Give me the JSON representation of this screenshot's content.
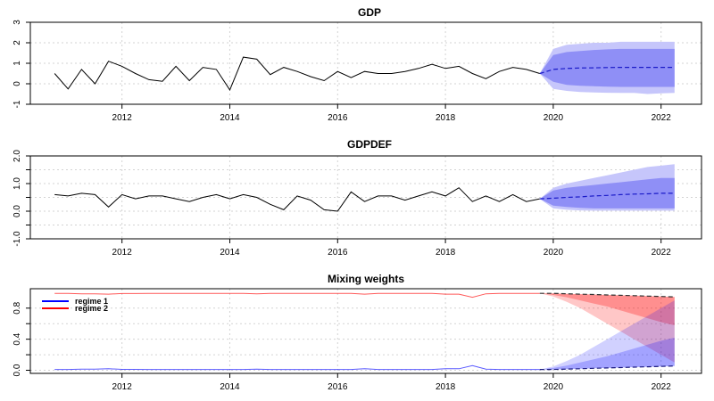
{
  "figure": {
    "colors": {
      "obs_line": "#000000",
      "band_outer": "#c6c6fb",
      "band_inner": "#8f8ff6",
      "forecast_line": "#1a1ac8",
      "regime1": "#0000ff",
      "regime2": "#ff0000",
      "grid": "#d3d3d3"
    }
  },
  "chart_data": [
    {
      "type": "line",
      "title": "GDP",
      "xlabel": "",
      "ylabel": "",
      "xlim": [
        2010.3,
        2022.75
      ],
      "ylim": [
        -1,
        3
      ],
      "yticks": [
        -1,
        0,
        1,
        2,
        3
      ],
      "ytick_labels": [
        "-1",
        "0",
        "1",
        "2",
        "3"
      ],
      "xticks": [
        2012,
        2014,
        2016,
        2018,
        2020,
        2022
      ],
      "xtick_labels": [
        "2012",
        "2014",
        "2016",
        "2018",
        "2020",
        "2022"
      ],
      "grid": true,
      "observed": {
        "x": [
          2010.75,
          2011.0,
          2011.25,
          2011.5,
          2011.75,
          2012.0,
          2012.25,
          2012.5,
          2012.75,
          2013.0,
          2013.25,
          2013.5,
          2013.75,
          2014.0,
          2014.25,
          2014.5,
          2014.75,
          2015.0,
          2015.25,
          2015.5,
          2015.75,
          2016.0,
          2016.25,
          2016.5,
          2016.75,
          2017.0,
          2017.25,
          2017.5,
          2017.75,
          2018.0,
          2018.25,
          2018.5,
          2018.75,
          2019.0,
          2019.25,
          2019.5,
          2019.75
        ],
        "y": [
          0.5,
          -0.25,
          0.7,
          0.0,
          1.1,
          0.85,
          0.5,
          0.2,
          0.12,
          0.85,
          0.15,
          0.8,
          0.7,
          -0.3,
          1.3,
          1.2,
          0.45,
          0.8,
          0.6,
          0.35,
          0.15,
          0.6,
          0.3,
          0.6,
          0.5,
          0.5,
          0.6,
          0.75,
          0.95,
          0.75,
          0.85,
          0.5,
          0.25,
          0.6,
          0.8,
          0.7,
          0.5
        ]
      },
      "forecast": {
        "x": [
          2019.75,
          2020.0,
          2020.25,
          2020.5,
          2020.75,
          2021.0,
          2021.25,
          2021.5,
          2021.75,
          2022.0,
          2022.25
        ],
        "mean": [
          0.5,
          0.7,
          0.75,
          0.77,
          0.78,
          0.79,
          0.8,
          0.8,
          0.8,
          0.8,
          0.8
        ],
        "inner_lower": [
          0.5,
          0.1,
          -0.05,
          -0.1,
          -0.12,
          -0.14,
          -0.15,
          -0.15,
          -0.15,
          -0.15,
          -0.15
        ],
        "inner_upper": [
          0.5,
          1.4,
          1.55,
          1.6,
          1.65,
          1.68,
          1.7,
          1.7,
          1.7,
          1.7,
          1.7
        ],
        "outer_lower": [
          0.5,
          -0.25,
          -0.35,
          -0.4,
          -0.42,
          -0.44,
          -0.45,
          -0.45,
          -0.5,
          -0.47,
          -0.45
        ],
        "outer_upper": [
          0.5,
          1.7,
          1.9,
          1.95,
          2.0,
          2.0,
          2.05,
          2.05,
          2.05,
          2.05,
          2.05
        ]
      }
    },
    {
      "type": "line",
      "title": "GDPDEF",
      "xlabel": "",
      "ylabel": "",
      "xlim": [
        2010.3,
        2022.75
      ],
      "ylim": [
        -1,
        2
      ],
      "yticks": [
        -1,
        -0.5,
        0,
        0.5,
        1,
        1.5,
        2
      ],
      "ytick_labels": [
        "-1.0",
        "",
        "0.0",
        "",
        "1.0",
        "",
        "2.0"
      ],
      "xticks": [
        2012,
        2014,
        2016,
        2018,
        2020,
        2022
      ],
      "xtick_labels": [
        "2012",
        "2014",
        "2016",
        "2018",
        "2020",
        "2022"
      ],
      "grid": true,
      "observed": {
        "x": [
          2010.75,
          2011.0,
          2011.25,
          2011.5,
          2011.75,
          2012.0,
          2012.25,
          2012.5,
          2012.75,
          2013.0,
          2013.25,
          2013.5,
          2013.75,
          2014.0,
          2014.25,
          2014.5,
          2014.75,
          2015.0,
          2015.25,
          2015.5,
          2015.75,
          2016.0,
          2016.25,
          2016.5,
          2016.75,
          2017.0,
          2017.25,
          2017.5,
          2017.75,
          2018.0,
          2018.25,
          2018.5,
          2018.75,
          2019.0,
          2019.25,
          2019.5,
          2019.75
        ],
        "y": [
          0.6,
          0.55,
          0.65,
          0.6,
          0.15,
          0.6,
          0.45,
          0.55,
          0.55,
          0.45,
          0.35,
          0.5,
          0.6,
          0.45,
          0.6,
          0.5,
          0.25,
          0.05,
          0.55,
          0.4,
          0.05,
          0.0,
          0.7,
          0.35,
          0.55,
          0.55,
          0.4,
          0.55,
          0.7,
          0.55,
          0.85,
          0.35,
          0.55,
          0.35,
          0.6,
          0.35,
          0.45
        ]
      },
      "forecast": {
        "x": [
          2019.75,
          2020.0,
          2020.25,
          2020.5,
          2020.75,
          2021.0,
          2021.25,
          2021.5,
          2021.75,
          2022.0,
          2022.25
        ],
        "mean": [
          0.45,
          0.47,
          0.5,
          0.52,
          0.55,
          0.57,
          0.6,
          0.62,
          0.63,
          0.65,
          0.65
        ],
        "inner_lower": [
          0.45,
          0.2,
          0.15,
          0.12,
          0.1,
          0.1,
          0.1,
          0.1,
          0.1,
          0.1,
          0.1
        ],
        "inner_upper": [
          0.45,
          0.75,
          0.85,
          0.9,
          0.95,
          1.0,
          1.05,
          1.1,
          1.15,
          1.2,
          1.2
        ],
        "outer_lower": [
          0.45,
          0.1,
          0.05,
          0.03,
          0.02,
          0.02,
          0.02,
          0.02,
          0.02,
          0.02,
          0.02
        ],
        "outer_upper": [
          0.45,
          0.85,
          1.0,
          1.1,
          1.2,
          1.3,
          1.4,
          1.5,
          1.6,
          1.65,
          1.7
        ]
      }
    },
    {
      "type": "line",
      "title": "Mixing weights",
      "xlabel": "",
      "ylabel": "",
      "xlim": [
        2010.3,
        2022.75
      ],
      "ylim": [
        -0.04,
        1.05
      ],
      "yticks": [
        0,
        0.2,
        0.4,
        0.6,
        0.8
      ],
      "ytick_labels": [
        "0.0",
        "",
        "0.4",
        "",
        "0.8"
      ],
      "xticks": [
        2012,
        2014,
        2016,
        2018,
        2020,
        2022
      ],
      "xtick_labels": [
        "2012",
        "2014",
        "2016",
        "2018",
        "2020",
        "2022"
      ],
      "grid": true,
      "legend_position": "top-left",
      "legend": [
        {
          "label": "regime 1",
          "color": "#0000ff"
        },
        {
          "label": "regime 2",
          "color": "#ff0000"
        }
      ],
      "observed": {
        "x": [
          2010.75,
          2011.0,
          2011.25,
          2011.5,
          2011.75,
          2012.0,
          2012.25,
          2012.5,
          2012.75,
          2013.0,
          2013.25,
          2013.5,
          2013.75,
          2014.0,
          2014.25,
          2014.5,
          2014.75,
          2015.0,
          2015.25,
          2015.5,
          2015.75,
          2016.0,
          2016.25,
          2016.5,
          2016.75,
          2017.0,
          2017.25,
          2017.5,
          2017.75,
          2018.0,
          2018.25,
          2018.5,
          2018.75,
          2019.0,
          2019.25,
          2019.5,
          2019.75
        ],
        "regime1": [
          0.01,
          0.01,
          0.015,
          0.015,
          0.02,
          0.012,
          0.012,
          0.01,
          0.01,
          0.01,
          0.01,
          0.01,
          0.01,
          0.01,
          0.01,
          0.015,
          0.01,
          0.01,
          0.01,
          0.01,
          0.01,
          0.01,
          0.01,
          0.02,
          0.01,
          0.01,
          0.01,
          0.01,
          0.01,
          0.02,
          0.02,
          0.06,
          0.015,
          0.01,
          0.01,
          0.01,
          0.01
        ]
      },
      "forecast": {
        "x": [
          2019.75,
          2020.0,
          2020.25,
          2020.5,
          2020.75,
          2021.0,
          2021.25,
          2021.5,
          2021.75,
          2022.0,
          2022.25
        ],
        "regime1_mean": [
          0.01,
          0.01,
          0.015,
          0.02,
          0.025,
          0.03,
          0.035,
          0.04,
          0.045,
          0.05,
          0.055
        ],
        "regime1_inner_upper": [
          0.01,
          0.03,
          0.06,
          0.1,
          0.14,
          0.18,
          0.23,
          0.28,
          0.33,
          0.38,
          0.42
        ],
        "regime1_outer_upper": [
          0.01,
          0.05,
          0.12,
          0.2,
          0.3,
          0.4,
          0.5,
          0.6,
          0.7,
          0.8,
          0.9
        ],
        "regime2_mean": [
          0.99,
          0.99,
          0.985,
          0.98,
          0.975,
          0.97,
          0.965,
          0.96,
          0.955,
          0.95,
          0.945
        ],
        "regime2_inner_lower": [
          0.99,
          0.97,
          0.94,
          0.9,
          0.86,
          0.82,
          0.77,
          0.72,
          0.67,
          0.62,
          0.58
        ],
        "regime2_outer_lower": [
          0.99,
          0.95,
          0.88,
          0.8,
          0.7,
          0.6,
          0.5,
          0.4,
          0.3,
          0.2,
          0.1
        ]
      }
    }
  ]
}
